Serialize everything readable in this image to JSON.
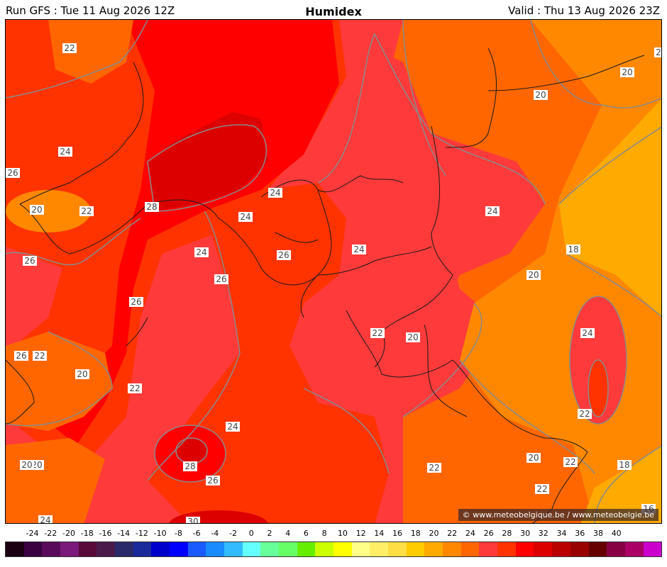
{
  "header": {
    "left": "Run GFS : Tue 11 Aug 2026 12Z",
    "title": "Humidex",
    "right": "Valid : Thu 13 Aug 2026 23Z"
  },
  "copyright": "© www.meteobelgique.be / www.meteobelgie.be",
  "legend": {
    "ticks": [
      "-24",
      "-22",
      "-20",
      "-18",
      "-16",
      "-14",
      "-12",
      "-10",
      "-8",
      "-6",
      "-4",
      "-2",
      "0",
      "2",
      "4",
      "6",
      "8",
      "10",
      "12",
      "14",
      "16",
      "18",
      "20",
      "22",
      "24",
      "26",
      "28",
      "30",
      "32",
      "34",
      "36",
      "38",
      "40"
    ],
    "colors": [
      "#1a0010",
      "#3a0040",
      "#5a0a5a",
      "#7a1a7a",
      "#5a0a3a",
      "#4a1a4a",
      "#2a2a6a",
      "#1a2a9a",
      "#0000cc",
      "#0000ff",
      "#1a5aff",
      "#1a8aff",
      "#33bbff",
      "#66ffff",
      "#66ff99",
      "#66ff66",
      "#66ee00",
      "#ccff00",
      "#ffff00",
      "#ffff88",
      "#ffee66",
      "#ffdd44",
      "#ffcc00",
      "#ffaa00",
      "#ff8800",
      "#ff6600",
      "#ff3a3a",
      "#ff3300",
      "#ff0000",
      "#dd0000",
      "#bb0000",
      "#990000",
      "#660000",
      "#880044",
      "#aa0066",
      "#cc00cc"
    ]
  },
  "contour_labels": [
    "22",
    "24",
    "26",
    "20",
    "22",
    "28",
    "24",
    "24",
    "26",
    "24",
    "26",
    "24",
    "26",
    "26",
    "20",
    "22",
    "22",
    "24",
    "20",
    "22",
    "20",
    "20",
    "24",
    "18",
    "20",
    "24",
    "22",
    "20",
    "22",
    "22",
    "18",
    "16",
    "22",
    "20",
    "26",
    "28",
    "26",
    "24",
    "30",
    "20",
    "2"
  ]
}
